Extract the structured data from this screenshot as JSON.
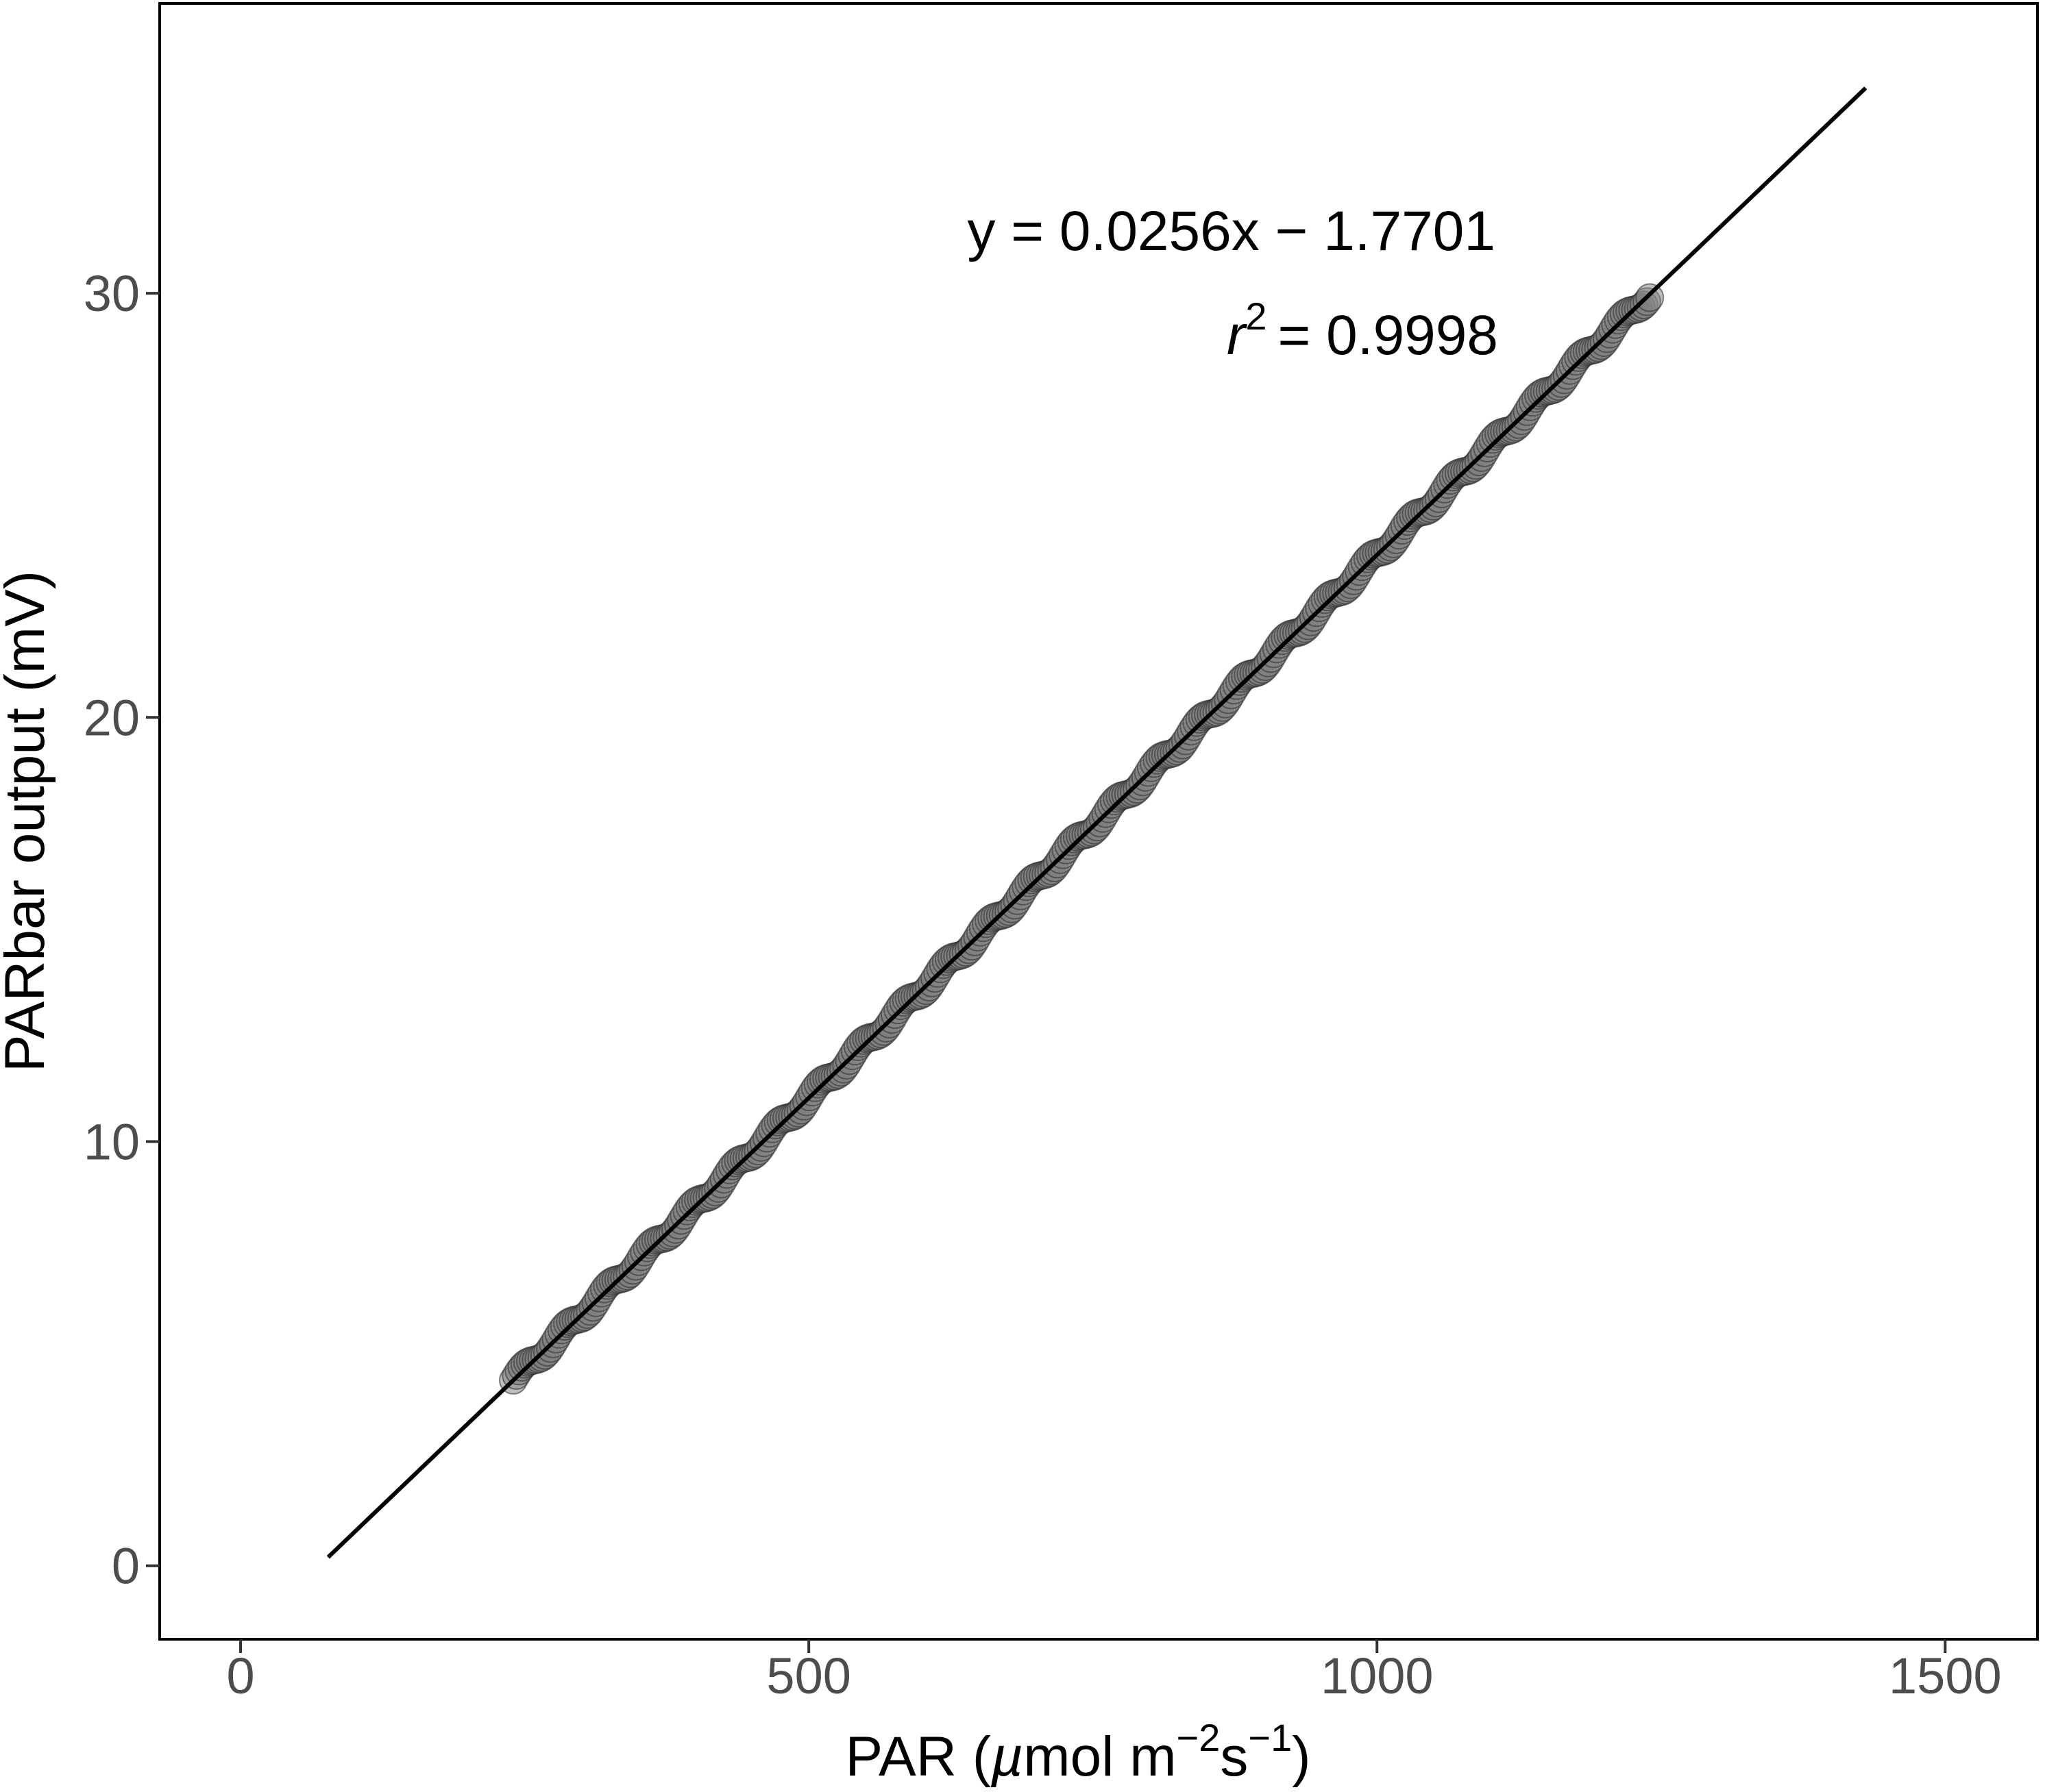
{
  "chart_data": {
    "type": "scatter",
    "xlabel": "PAR (µmol m⁻²s⁻¹)",
    "xlabel_parts": {
      "main": "PAR (",
      "mu": "µ",
      "unit1": "mol m",
      "exp1": "−2",
      "unit2": "s",
      "exp2": "−1",
      "close": ")"
    },
    "ylabel": "PARbar output (mV)",
    "xlim": [
      -70,
      1580
    ],
    "ylim": [
      -1.7,
      36.8
    ],
    "x_ticks": [
      0,
      500,
      1000,
      1500
    ],
    "x_tick_labels": [
      "0",
      "500",
      "1000",
      "1500"
    ],
    "y_ticks": [
      0,
      10,
      20,
      30
    ],
    "y_tick_labels": [
      "0",
      "10",
      "20",
      "30"
    ],
    "grid": false,
    "points": {
      "x_range": [
        240,
        1240
      ],
      "count": 400,
      "marker": "circle",
      "fill": "#7f7f7f",
      "fill_opacity": 0.5,
      "stroke": "#333333"
    },
    "fit_line": {
      "slope": 0.0256,
      "intercept": -1.7701,
      "x_range": [
        77,
        1430
      ],
      "color": "#000000"
    },
    "annotations": {
      "equation": "y = 0.0256x − 1.7701",
      "r2_symbol": "r",
      "r2_exponent": "2",
      "r2_value": "= 0.9998"
    }
  }
}
